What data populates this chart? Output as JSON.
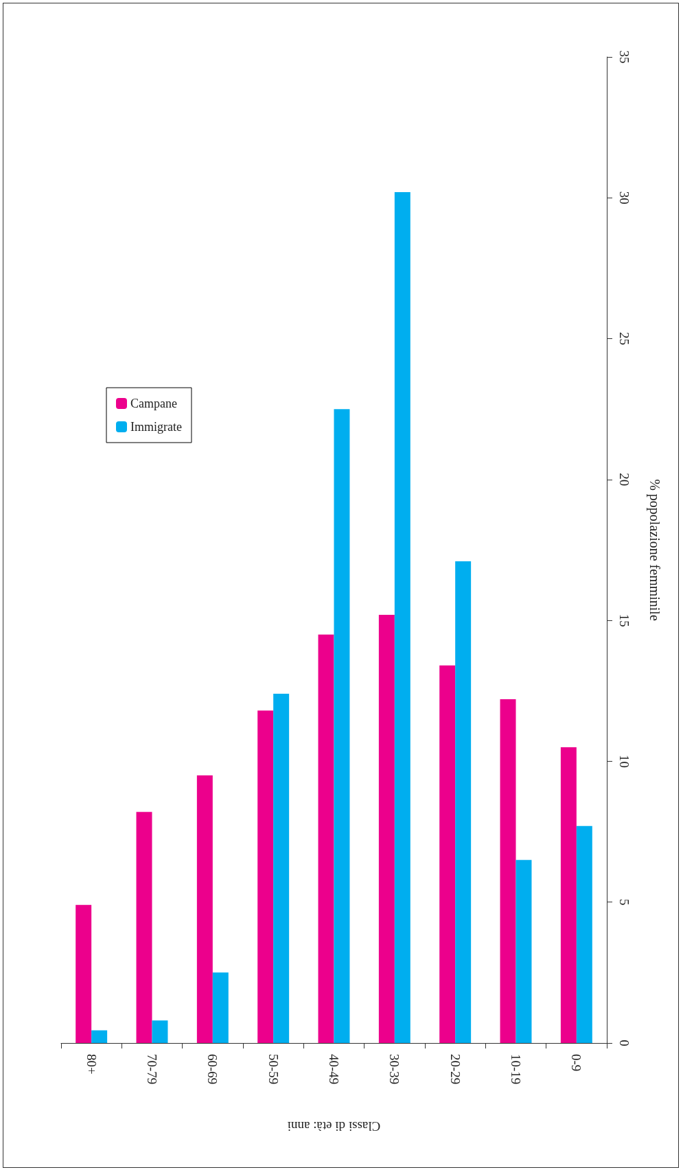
{
  "chart_data": {
    "type": "bar",
    "xlabel": "Classi di età: anni",
    "ylabel": "% popolazione femminile",
    "categories": [
      "80+",
      "70-79",
      "60-69",
      "50-59",
      "40-49",
      "30-39",
      "20-29",
      "10-19",
      "0-9"
    ],
    "series": [
      {
        "name": "Campane",
        "color": "#ec008c",
        "values": [
          4.9,
          8.2,
          9.5,
          11.8,
          14.5,
          15.2,
          13.4,
          12.2,
          10.5
        ]
      },
      {
        "name": "Immigrate",
        "color": "#00aeef",
        "values": [
          0.45,
          0.8,
          2.5,
          12.4,
          22.5,
          30.2,
          17.1,
          6.5,
          7.7
        ]
      }
    ],
    "ylim": [
      0,
      35
    ],
    "yticks": [
      0,
      5,
      10,
      15,
      20,
      25,
      30,
      35
    ],
    "grid": false,
    "legend": "top left"
  }
}
